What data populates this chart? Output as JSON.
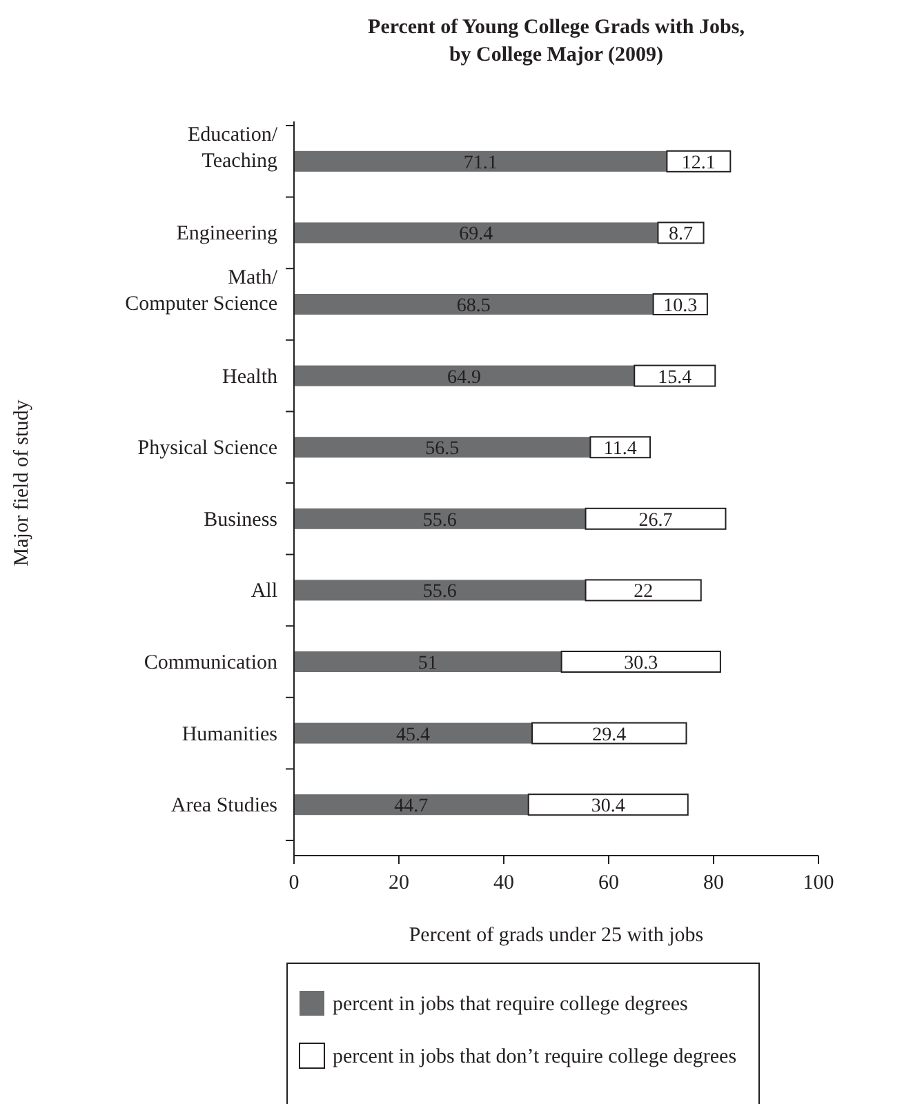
{
  "chart_data": {
    "type": "bar",
    "orientation": "horizontal",
    "stacked": true,
    "title": "Percent of Young College Grads with Jobs,\nby College Major (2009)",
    "xlabel": "Percent of grads under 25 with jobs",
    "ylabel": "Major field of study",
    "categories": [
      "Education/\nTeaching",
      "Engineering",
      "Math/\nComputer Science",
      "Health",
      "Physical Science",
      "Business",
      "All",
      "Communication",
      "Humanities",
      "Area Studies"
    ],
    "series": [
      {
        "name": "percent in jobs that require college degrees",
        "color": "#6d6e70",
        "values": [
          71.1,
          69.4,
          68.5,
          64.9,
          56.5,
          55.6,
          55.6,
          51,
          45.4,
          44.7
        ]
      },
      {
        "name": "percent in jobs that don’t require college degrees",
        "color": "#ffffff",
        "values": [
          12.1,
          8.7,
          10.3,
          15.4,
          11.4,
          26.7,
          22,
          30.3,
          29.4,
          30.4
        ]
      }
    ],
    "xlim": [
      0,
      100
    ],
    "xticks": [
      0,
      20,
      40,
      60,
      80,
      100
    ],
    "data_labels": true,
    "legend": "bottom",
    "grid": false
  }
}
